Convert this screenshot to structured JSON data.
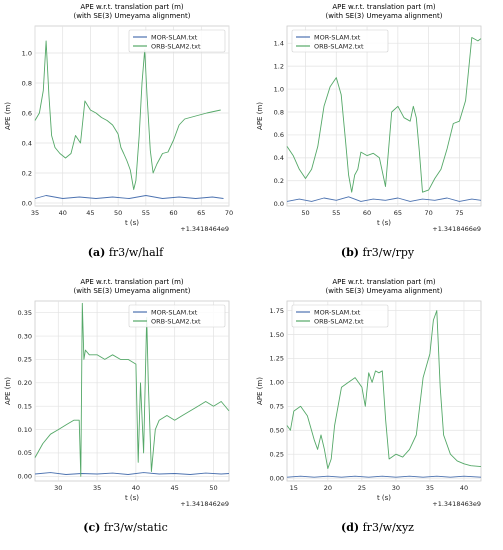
{
  "chart_data": [
    {
      "type": "line",
      "panel_label": "(a)",
      "caption": "fr3/w/half",
      "title": "APE w.r.t. translation part (m)",
      "subtitle": "(with SE(3) Umeyama alignment)",
      "xlabel": "t (s)",
      "ylabel": "APE (m)",
      "offset_label": "+1.3418464e9",
      "xlim": [
        35,
        70
      ],
      "ylim": [
        -0.02,
        1.18
      ],
      "xticks": [
        35,
        40,
        45,
        50,
        55,
        60,
        65,
        70
      ],
      "yticks": [
        0.0,
        0.2,
        0.4,
        0.6,
        0.8,
        1.0
      ],
      "legend_position": "top-right",
      "grid": true,
      "series": [
        {
          "name": "MOR-SLAM.txt",
          "color": "#4c72b0",
          "x": [
            35,
            37,
            40,
            43,
            46,
            49,
            52,
            55,
            58,
            61,
            64,
            67,
            69
          ],
          "y": [
            0.03,
            0.05,
            0.03,
            0.04,
            0.03,
            0.04,
            0.03,
            0.05,
            0.03,
            0.04,
            0.03,
            0.04,
            0.03
          ]
        },
        {
          "name": "ORB-SLAM2.txt",
          "color": "#55a868",
          "x": [
            35,
            35.8,
            36.5,
            37,
            37.5,
            38,
            38.6,
            39.5,
            40.5,
            41.5,
            42.3,
            43.2,
            44,
            45,
            46,
            47,
            48,
            49,
            50,
            50.5,
            51,
            51.6,
            52.2,
            52.8,
            53.2,
            53.8,
            54.3,
            54.8,
            55.2,
            55.8,
            56.3,
            57,
            58,
            59,
            60,
            61,
            62,
            64,
            66,
            68.5
          ],
          "y": [
            0.55,
            0.6,
            0.75,
            1.08,
            0.72,
            0.45,
            0.37,
            0.33,
            0.3,
            0.33,
            0.45,
            0.4,
            0.68,
            0.62,
            0.6,
            0.57,
            0.55,
            0.52,
            0.46,
            0.37,
            0.33,
            0.28,
            0.22,
            0.09,
            0.15,
            0.45,
            0.8,
            1.02,
            0.72,
            0.35,
            0.2,
            0.26,
            0.33,
            0.34,
            0.42,
            0.52,
            0.56,
            0.58,
            0.6,
            0.62
          ]
        }
      ]
    },
    {
      "type": "line",
      "panel_label": "(b)",
      "caption": "fr3/w/rpy",
      "title": "APE w.r.t. translation part (m)",
      "subtitle": "(with SE(3) Umeyama alignment)",
      "xlabel": "t (s)",
      "ylabel": "APE (m)",
      "offset_label": "+1.3418466e9",
      "xlim": [
        47,
        78.5
      ],
      "ylim": [
        -0.02,
        1.55
      ],
      "xticks": [
        50,
        55,
        60,
        65,
        70,
        75
      ],
      "yticks": [
        0.0,
        0.2,
        0.4,
        0.6,
        0.8,
        1.0,
        1.2,
        1.4
      ],
      "legend_position": "top-left",
      "grid": true,
      "series": [
        {
          "name": "MOR-SLAM.txt",
          "color": "#4c72b0",
          "x": [
            47,
            49,
            51,
            53,
            55,
            57,
            59,
            61,
            63,
            65,
            67,
            69,
            71,
            73,
            75,
            77,
            78.5
          ],
          "y": [
            0.02,
            0.04,
            0.02,
            0.05,
            0.03,
            0.06,
            0.02,
            0.04,
            0.03,
            0.05,
            0.02,
            0.04,
            0.03,
            0.05,
            0.02,
            0.04,
            0.03
          ]
        },
        {
          "name": "ORB-SLAM2.txt",
          "color": "#55a868",
          "x": [
            47,
            48,
            49,
            50,
            51,
            52,
            53,
            54,
            55,
            55.8,
            56.5,
            57,
            57.5,
            58,
            58.5,
            59,
            60,
            61,
            62,
            63,
            64,
            65,
            66,
            67,
            67.5,
            68,
            68.5,
            69,
            70,
            71,
            72,
            73,
            74,
            75,
            76,
            77,
            78,
            78.5
          ],
          "y": [
            0.5,
            0.42,
            0.3,
            0.22,
            0.3,
            0.5,
            0.85,
            1.02,
            1.1,
            0.95,
            0.55,
            0.25,
            0.1,
            0.25,
            0.3,
            0.45,
            0.42,
            0.44,
            0.4,
            0.15,
            0.8,
            0.85,
            0.75,
            0.72,
            0.85,
            0.75,
            0.45,
            0.1,
            0.12,
            0.22,
            0.3,
            0.48,
            0.7,
            0.72,
            0.9,
            1.45,
            1.42,
            1.44
          ]
        }
      ]
    },
    {
      "type": "line",
      "panel_label": "(c)",
      "caption": "fr3/w/static",
      "title": "APE w.r.t. translation part (m)",
      "subtitle": "(with SE(3) Umeyama alignment)",
      "xlabel": "t (s)",
      "ylabel": "APE (m)",
      "offset_label": "+1.3418462e9",
      "xlim": [
        27,
        52
      ],
      "ylim": [
        -0.01,
        0.375
      ],
      "xticks": [
        30,
        35,
        40,
        45,
        50
      ],
      "yticks": [
        0.0,
        0.05,
        0.1,
        0.15,
        0.2,
        0.25,
        0.3,
        0.35
      ],
      "legend_position": "top-right",
      "grid": true,
      "series": [
        {
          "name": "MOR-SLAM.txt",
          "color": "#4c72b0",
          "x": [
            27,
            29,
            31,
            33,
            35,
            37,
            39,
            41,
            43,
            45,
            47,
            49,
            51,
            52
          ],
          "y": [
            0.005,
            0.008,
            0.004,
            0.006,
            0.005,
            0.007,
            0.004,
            0.008,
            0.005,
            0.006,
            0.004,
            0.007,
            0.005,
            0.006
          ]
        },
        {
          "name": "ORB-SLAM2.txt",
          "color": "#55a868",
          "x": [
            27,
            28,
            29,
            30,
            31,
            32,
            32.7,
            32.9,
            33.1,
            33.3,
            33.5,
            34,
            35,
            36,
            37,
            38,
            39,
            40,
            40.3,
            40.6,
            41,
            41.4,
            41.6,
            42,
            42.5,
            43,
            44,
            45,
            46,
            47,
            48,
            49,
            50,
            51,
            52
          ],
          "y": [
            0.04,
            0.07,
            0.09,
            0.1,
            0.11,
            0.12,
            0.12,
            0.0,
            0.37,
            0.25,
            0.27,
            0.26,
            0.26,
            0.25,
            0.26,
            0.25,
            0.25,
            0.24,
            0.03,
            0.2,
            0.05,
            0.34,
            0.2,
            0.01,
            0.1,
            0.12,
            0.13,
            0.12,
            0.13,
            0.14,
            0.15,
            0.16,
            0.15,
            0.16,
            0.14
          ]
        }
      ]
    },
    {
      "type": "line",
      "panel_label": "(d)",
      "caption": "fr3/w/xyz",
      "title": "APE w.r.t. translation part (m)",
      "subtitle": "(with SE(3) Umeyama alignment)",
      "xlabel": "t (s)",
      "ylabel": "APE (m)",
      "offset_label": "+1.3418463e9",
      "xlim": [
        14,
        42.5
      ],
      "ylim": [
        -0.03,
        1.85
      ],
      "xticks": [
        15,
        20,
        25,
        30,
        35,
        40
      ],
      "yticks": [
        0.0,
        0.25,
        0.5,
        0.75,
        1.0,
        1.25,
        1.5,
        1.75
      ],
      "legend_position": "top-left",
      "grid": true,
      "series": [
        {
          "name": "MOR-SLAM.txt",
          "color": "#4c72b0",
          "x": [
            14,
            16,
            18,
            20,
            22,
            24,
            26,
            28,
            30,
            32,
            34,
            36,
            38,
            40,
            42.5
          ],
          "y": [
            0.01,
            0.02,
            0.01,
            0.02,
            0.01,
            0.02,
            0.01,
            0.02,
            0.01,
            0.02,
            0.01,
            0.02,
            0.01,
            0.02,
            0.01
          ]
        },
        {
          "name": "ORB-SLAM2.txt",
          "color": "#55a868",
          "x": [
            14,
            14.5,
            15,
            16,
            17,
            18,
            18.5,
            19,
            19.5,
            20,
            20.5,
            21,
            22,
            23,
            24,
            25,
            25.5,
            26,
            26.5,
            27,
            27.5,
            28,
            28.5,
            29,
            30,
            31,
            32,
            33,
            34,
            35,
            35.5,
            36,
            36.5,
            37,
            38,
            39,
            40,
            41,
            42.5
          ],
          "y": [
            0.55,
            0.5,
            0.7,
            0.75,
            0.65,
            0.4,
            0.3,
            0.45,
            0.3,
            0.1,
            0.2,
            0.55,
            0.95,
            1.0,
            1.05,
            0.95,
            0.75,
            1.1,
            1.0,
            1.12,
            1.1,
            1.12,
            0.6,
            0.2,
            0.25,
            0.22,
            0.3,
            0.45,
            1.05,
            1.3,
            1.65,
            1.75,
            0.95,
            0.45,
            0.25,
            0.18,
            0.15,
            0.13,
            0.12
          ]
        }
      ]
    }
  ]
}
